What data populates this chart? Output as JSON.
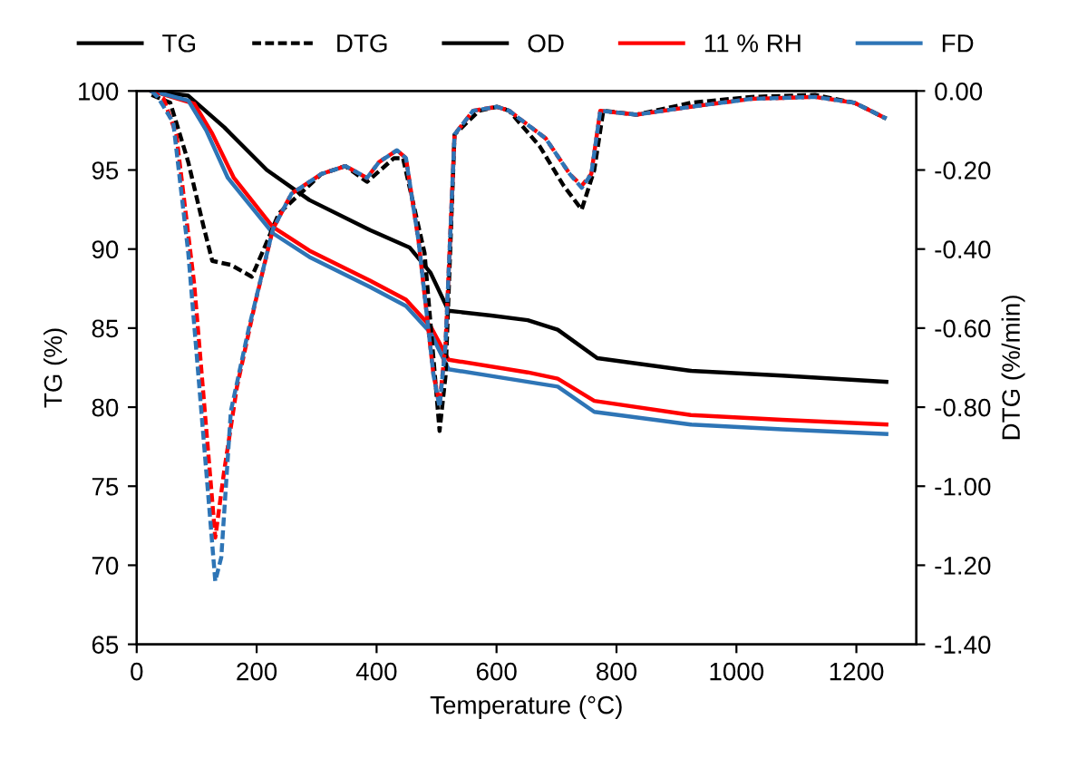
{
  "chart_data": {
    "type": "line",
    "xlabel": "Temperature (°C)",
    "ylabel": "TG (%)",
    "y2label": "DTG (%/min)",
    "annotations": [
      "TG",
      "DTG"
    ],
    "xlim": [
      0,
      1300
    ],
    "xticks": [
      0,
      200,
      400,
      600,
      800,
      1000,
      1200
    ],
    "ylim": [
      65,
      100
    ],
    "yticks": [
      65,
      70,
      75,
      80,
      85,
      90,
      95,
      100
    ],
    "y2lim": [
      -1.4,
      0
    ],
    "y2ticks": [
      {
        "value": -1.4,
        "label": "-1.40"
      },
      {
        "value": -1.2,
        "label": "-1.20"
      },
      {
        "value": -1.0,
        "label": "-1.00"
      },
      {
        "value": -0.8,
        "label": "-0.80"
      },
      {
        "value": -0.6,
        "label": "-0.60"
      },
      {
        "value": -0.4,
        "label": "-0.40"
      },
      {
        "value": -0.2,
        "label": "-0.20"
      },
      {
        "value": 0,
        "label": "0.00"
      }
    ],
    "grid": false,
    "legend": "top",
    "marker": "none",
    "series": [
      {
        "name": "OD",
        "color": "#000000",
        "line_style": "solid",
        "x": [
          25,
          86,
          146,
          217,
          288,
          389,
          455,
          490,
          520,
          591,
          652,
          702,
          768,
          924,
          1076,
          1250
        ],
        "values": [
          100,
          99.7,
          97.7,
          95.0,
          93.1,
          91.2,
          90.1,
          88.5,
          86.1,
          85.8,
          85.5,
          84.9,
          83.1,
          82.3,
          82.0,
          81.6
        ]
      },
      {
        "name": "11 % RH",
        "color": "#ff0000",
        "line_style": "solid",
        "x": [
          25,
          96,
          126,
          162,
          227,
          288,
          389,
          449,
          490,
          520,
          652,
          702,
          763,
          924,
          1076,
          1250
        ],
        "values": [
          100,
          99.2,
          97.3,
          94.5,
          91.4,
          89.9,
          88.0,
          86.8,
          85.1,
          83.0,
          82.2,
          81.8,
          80.4,
          79.5,
          79.2,
          78.9
        ]
      },
      {
        "name": "FD",
        "color": "#2e75b6",
        "line_style": "solid",
        "x": [
          25,
          86,
          116,
          152,
          227,
          288,
          389,
          449,
          490,
          520,
          652,
          702,
          763,
          924,
          1076,
          1250
        ],
        "values": [
          100,
          99.4,
          97.5,
          94.5,
          91.0,
          89.5,
          87.6,
          86.4,
          84.7,
          82.4,
          81.6,
          81.3,
          79.7,
          78.9,
          78.6,
          78.3
        ]
      },
      {
        "color": "#000000",
        "line_style": "dashed",
        "axis": "y2",
        "x": [
          25,
          56,
          86,
          111,
          126,
          157,
          192,
          212,
          237,
          308,
          348,
          384,
          429,
          444,
          480,
          505,
          515,
          530,
          571,
          601,
          621,
          672,
          712,
          742,
          763,
          778,
          833,
          924,
          1025,
          1131,
          1197,
          1250
        ],
        "values": [
          -0.01,
          -0.03,
          -0.18,
          -0.34,
          -0.43,
          -0.44,
          -0.47,
          -0.4,
          -0.31,
          -0.21,
          -0.19,
          -0.23,
          -0.17,
          -0.17,
          -0.41,
          -0.86,
          -0.72,
          -0.11,
          -0.05,
          -0.04,
          -0.05,
          -0.14,
          -0.24,
          -0.3,
          -0.2,
          -0.05,
          -0.06,
          -0.03,
          -0.015,
          -0.01,
          -0.03,
          -0.07
        ]
      },
      {
        "color": "#ff0000",
        "line_style": "dashed",
        "axis": "y2",
        "x": [
          25,
          45,
          66,
          96,
          131,
          146,
          167,
          197,
          227,
          258,
          308,
          348,
          384,
          404,
          434,
          449,
          470,
          495,
          505,
          515,
          530,
          561,
          601,
          621,
          682,
          722,
          742,
          758,
          773,
          833,
          924,
          1025,
          1131,
          1197,
          1250
        ],
        "values": [
          0,
          -0.02,
          -0.11,
          -0.49,
          -1.13,
          -0.96,
          -0.75,
          -0.54,
          -0.35,
          -0.26,
          -0.21,
          -0.19,
          -0.22,
          -0.18,
          -0.15,
          -0.17,
          -0.38,
          -0.72,
          -0.79,
          -0.64,
          -0.11,
          -0.05,
          -0.04,
          -0.05,
          -0.12,
          -0.21,
          -0.24,
          -0.21,
          -0.05,
          -0.06,
          -0.04,
          -0.02,
          -0.015,
          -0.03,
          -0.07
        ]
      },
      {
        "color": "#2e75b6",
        "line_style": "dashed",
        "axis": "y2",
        "x": [
          25,
          35,
          61,
          86,
          111,
          131,
          141,
          157,
          187,
          227,
          258,
          308,
          348,
          384,
          404,
          434,
          449,
          470,
          495,
          505,
          515,
          530,
          561,
          601,
          621,
          682,
          722,
          742,
          758,
          773,
          833,
          924,
          1025,
          1131,
          1197,
          1250
        ],
        "values": [
          0,
          -0.015,
          -0.08,
          -0.41,
          -0.87,
          -1.24,
          -1.18,
          -0.81,
          -0.6,
          -0.35,
          -0.26,
          -0.21,
          -0.19,
          -0.22,
          -0.18,
          -0.15,
          -0.17,
          -0.38,
          -0.72,
          -0.8,
          -0.64,
          -0.11,
          -0.05,
          -0.04,
          -0.05,
          -0.12,
          -0.21,
          -0.245,
          -0.21,
          -0.05,
          -0.06,
          -0.04,
          -0.02,
          -0.015,
          -0.03,
          -0.07
        ]
      }
    ]
  }
}
